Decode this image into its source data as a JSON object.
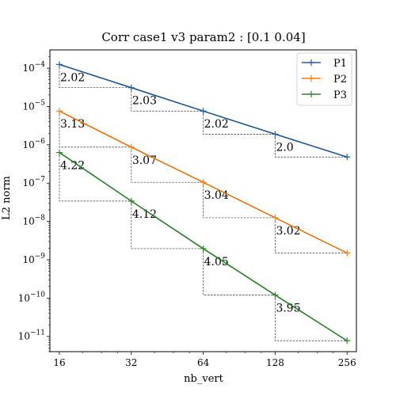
{
  "chart_data": {
    "type": "line",
    "title": "Corr case1 v3 param2 : [0.1 0.04]",
    "xlabel": "nb_vert",
    "ylabel": "L2 norm",
    "x_scale": "log2",
    "y_scale": "log10",
    "x": [
      16,
      32,
      64,
      128,
      256
    ],
    "x_ticks": [
      "16",
      "32",
      "64",
      "128",
      "256"
    ],
    "xlim": [
      14.6,
      280
    ],
    "y_ticks": [
      {
        "mant": "10",
        "exp": "−4",
        "value": 0.0001
      },
      {
        "mant": "10",
        "exp": "−5",
        "value": 1e-05
      },
      {
        "mant": "10",
        "exp": "−6",
        "value": 1e-06
      },
      {
        "mant": "10",
        "exp": "−7",
        "value": 1e-07
      },
      {
        "mant": "10",
        "exp": "−8",
        "value": 1e-08
      },
      {
        "mant": "10",
        "exp": "−9",
        "value": 1e-09
      },
      {
        "mant": "10",
        "exp": "−10",
        "value": 1e-10
      },
      {
        "mant": "10",
        "exp": "−11",
        "value": 1e-11
      }
    ],
    "ylim": [
      4e-12,
      0.0003
    ],
    "legend_position": "top-right",
    "series": [
      {
        "name": "P1",
        "color": "#1f5f9f",
        "values": [
          0.000125,
          3.1e-05,
          7.6e-06,
          1.9e-06,
          4.8e-07
        ],
        "slopes": [
          "2.02",
          "2.03",
          "2.02",
          "2.0"
        ]
      },
      {
        "name": "P2",
        "color": "#ff7f0e",
        "values": [
          7.6e-06,
          8.7e-07,
          1.05e-07,
          1.25e-08,
          1.5e-09
        ],
        "slopes": [
          "3.13",
          "3.07",
          "3.04",
          "3.02"
        ]
      },
      {
        "name": "P3",
        "color": "#2a8a2a",
        "values": [
          6.3e-07,
          3.4e-08,
          1.95e-09,
          1.2e-10,
          7.7e-12
        ],
        "slopes": [
          "4.22",
          "4.12",
          "4.05",
          "3.95"
        ]
      }
    ]
  }
}
